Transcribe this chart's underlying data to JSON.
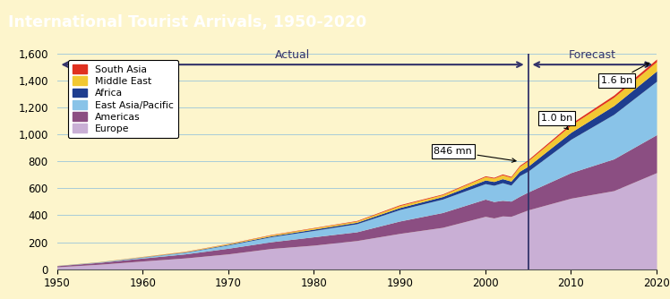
{
  "title": "International Tourist Arrivals, 1950-2020",
  "title_bg": "#1a8a9e",
  "title_color": "white",
  "background_color": "#fdf5cc",
  "plot_bg": "#fdf5cc",
  "grid_color": "#a8ccd8",
  "colors": {
    "Europe": "#c9afd5",
    "Americas": "#8b4e82",
    "East_Asia_Pacific": "#89c3e8",
    "Africa": "#1e3d8f",
    "Middle_East": "#f2c832",
    "South_Asia": "#e03020"
  },
  "legend_labels": [
    "South Asia",
    "Middle East",
    "Africa",
    "East Asia/Pacific",
    "Americas",
    "Europe"
  ],
  "legend_keys": [
    "South_Asia",
    "Middle_East",
    "Africa",
    "East_Asia_Pacific",
    "Americas",
    "Europe"
  ],
  "ylim": [
    0,
    1600
  ],
  "yticks": [
    0,
    200,
    400,
    600,
    800,
    1000,
    1200,
    1400,
    1600
  ],
  "forecast_year": 2005
}
